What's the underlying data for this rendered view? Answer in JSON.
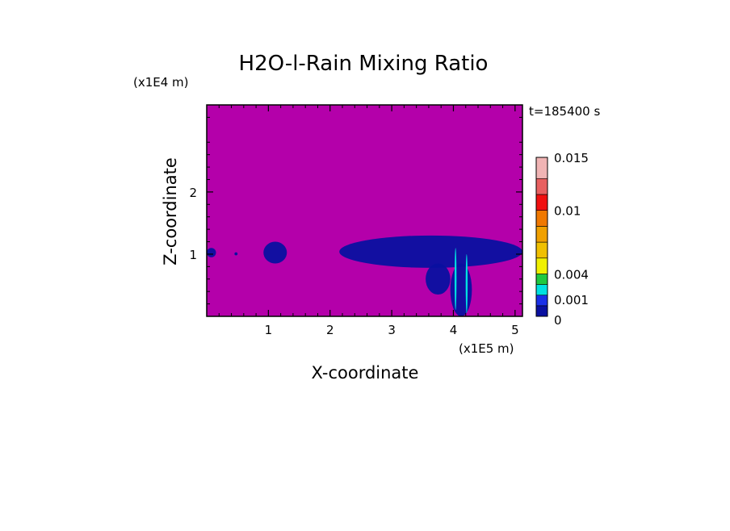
{
  "chart_data": {
    "type": "heatmap",
    "title": "H2O-l-Rain Mixing Ratio",
    "time_label": "t=185400 s",
    "xlabel": "X-coordinate",
    "ylabel": "Z-coordinate",
    "x_scale_label": "(x1E5 m)",
    "y_scale_label": "(x1E4 m)",
    "xlim": [
      0,
      5.12
    ],
    "ylim": [
      0,
      3.4
    ],
    "x_ticks": [
      1,
      2,
      3,
      4,
      5
    ],
    "y_ticks": [
      1,
      2
    ],
    "x_tick_labels": [
      "1",
      "2",
      "3",
      "4",
      "5"
    ],
    "y_tick_labels": [
      "1",
      "2"
    ],
    "background_color": "#b400aa",
    "colorbar": {
      "levels": [
        0,
        0.001,
        0.002,
        0.003,
        0.004,
        0.0055,
        0.007,
        0.0085,
        0.01,
        0.0115,
        0.013,
        0.015
      ],
      "colors": [
        "#0a10a0",
        "#1a30e8",
        "#00e0e0",
        "#20c840",
        "#f0f000",
        "#f0c000",
        "#f0a000",
        "#f07800",
        "#f01010",
        "#e86060",
        "#f0b4b4"
      ],
      "tick_values": [
        0,
        0.001,
        0.004,
        0.01,
        0.015
      ],
      "tick_labels": [
        "0",
        "0.001",
        "0.004",
        "0.01",
        "0.015"
      ]
    },
    "rain_regions": [
      {
        "x": [
          0.0,
          0.15
        ],
        "z": [
          0.95,
          1.1
        ],
        "level": 0
      },
      {
        "x": [
          0.45,
          0.5
        ],
        "z": [
          0.98,
          1.03
        ],
        "level": 0
      },
      {
        "x": [
          0.92,
          1.3
        ],
        "z": [
          0.85,
          1.2
        ],
        "level": 0
      },
      {
        "x": [
          2.15,
          5.12
        ],
        "z": [
          0.78,
          1.3
        ],
        "level": 0
      },
      {
        "x": [
          3.55,
          3.95
        ],
        "z": [
          0.35,
          0.85
        ],
        "level": 0
      },
      {
        "x": [
          3.95,
          4.3
        ],
        "z": [
          0.0,
          0.85
        ],
        "level": 0
      },
      {
        "x": [
          4.02,
          4.05
        ],
        "z": [
          0.1,
          1.1
        ],
        "level": 2
      },
      {
        "x": [
          4.2,
          4.23
        ],
        "z": [
          0.05,
          1.0
        ],
        "level": 2
      }
    ]
  }
}
